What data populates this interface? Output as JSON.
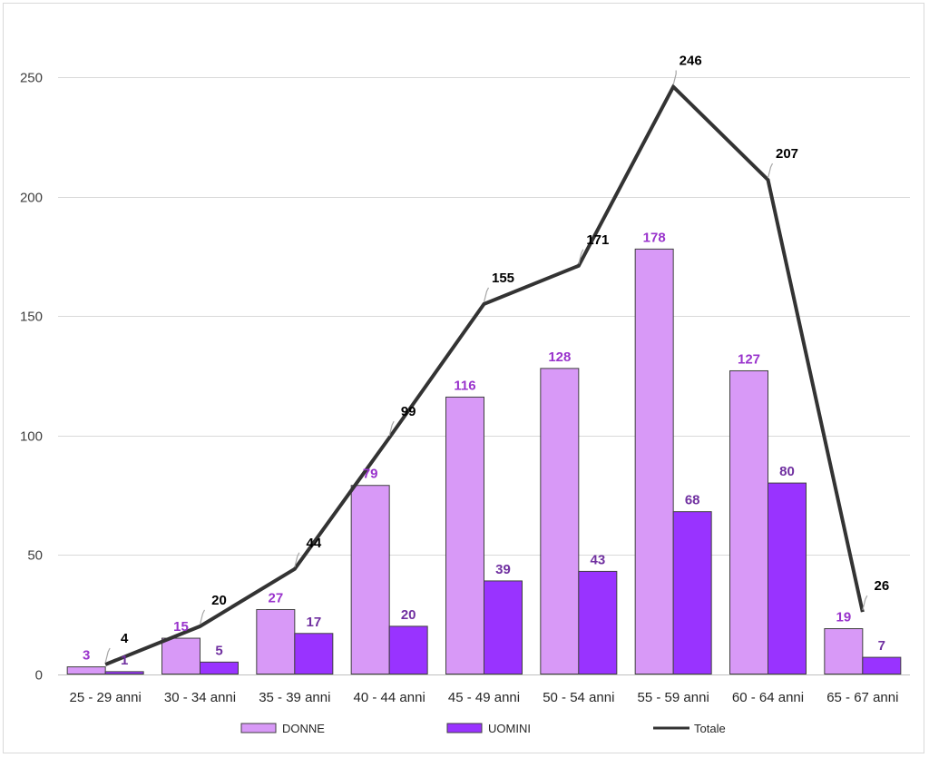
{
  "chart_data": {
    "type": "bar",
    "categories": [
      "25 - 29 anni",
      "30 - 34 anni",
      "35 - 39 anni",
      "40 - 44 anni",
      "45 - 49 anni",
      "50 - 54 anni",
      "55 - 59 anni",
      "60 - 64 anni",
      "65 - 67 anni"
    ],
    "series": [
      {
        "name": "DONNE",
        "type": "bar",
        "color": "#d899f7",
        "label_color": "#9933cc",
        "values": [
          3,
          15,
          27,
          79,
          116,
          128,
          178,
          127,
          19
        ]
      },
      {
        "name": "UOMINI",
        "type": "bar",
        "color": "#9933ff",
        "label_color": "#7030a0",
        "values": [
          1,
          5,
          17,
          20,
          39,
          43,
          68,
          80,
          7
        ]
      },
      {
        "name": "Totale",
        "type": "line",
        "color": "#333333",
        "label_color": "#000000",
        "values": [
          4,
          20,
          44,
          99,
          155,
          171,
          246,
          207,
          26
        ]
      }
    ],
    "ylim": [
      0,
      250
    ],
    "yticks": [
      0,
      50,
      100,
      150,
      200,
      250
    ],
    "grid": true,
    "legend_position": "bottom"
  }
}
